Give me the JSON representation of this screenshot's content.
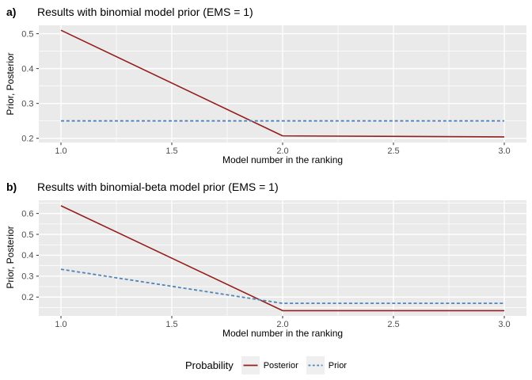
{
  "figure": {
    "legend": {
      "title": "Probability",
      "items": [
        {
          "label": "Posterior",
          "line_style": "solid"
        },
        {
          "label": "Prior",
          "line_style": "dashed"
        }
      ]
    }
  },
  "colors": {
    "posterior_line": "#941F1C",
    "prior_line": "#4F83BA",
    "panel_background": "#EAEAEA",
    "gridline": "#FFFFFF",
    "tick_label": "#4D4D4D",
    "tick_mark": "#333333",
    "text": "#000000",
    "legend_key_background": "#EFEFEF"
  },
  "chart_data": [
    {
      "type": "line",
      "tag": "a)",
      "title": "Results with binomial model prior (EMS = 1)",
      "xlabel": "Model number in the ranking",
      "ylabel": "Prior, Posterior",
      "x": [
        1,
        2,
        3
      ],
      "series": [
        {
          "name": "Posterior",
          "values": [
            0.51,
            0.207,
            0.204
          ],
          "style": "solid"
        },
        {
          "name": "Prior",
          "values": [
            0.25,
            0.25,
            0.25
          ],
          "style": "dashed"
        }
      ],
      "xlim": [
        0.9,
        3.1
      ],
      "ylim": [
        0.188,
        0.524
      ],
      "x_ticks": [
        1.0,
        1.5,
        2.0,
        2.5,
        3.0
      ],
      "x_tick_labels": [
        "1.0",
        "1.5",
        "2.0",
        "2.5",
        "3.0"
      ],
      "y_ticks": [
        0.2,
        0.3,
        0.4,
        0.5
      ],
      "y_tick_labels": [
        "0.2",
        "0.3",
        "0.4",
        "0.5"
      ],
      "x_minor_ticks": [
        1.25,
        1.75,
        2.25,
        2.75
      ],
      "y_minor_ticks": [
        0.25,
        0.35,
        0.45
      ],
      "grid": true,
      "legend_position": "bottom"
    },
    {
      "type": "line",
      "tag": "b)",
      "title": "Results with binomial-beta model prior (EMS = 1)",
      "xlabel": "Model number in the ranking",
      "ylabel": "Prior, Posterior",
      "x": [
        1,
        2,
        3
      ],
      "series": [
        {
          "name": "Posterior",
          "values": [
            0.637,
            0.135,
            0.135
          ],
          "style": "solid"
        },
        {
          "name": "Prior",
          "values": [
            0.333,
            0.17,
            0.17
          ],
          "style": "dashed"
        }
      ],
      "xlim": [
        0.9,
        3.1
      ],
      "ylim": [
        0.11,
        0.663
      ],
      "x_ticks": [
        1.0,
        1.5,
        2.0,
        2.5,
        3.0
      ],
      "x_tick_labels": [
        "1.0",
        "1.5",
        "2.0",
        "2.5",
        "3.0"
      ],
      "y_ticks": [
        0.2,
        0.3,
        0.4,
        0.5,
        0.6
      ],
      "y_tick_labels": [
        "0.2",
        "0.3",
        "0.4",
        "0.5",
        "0.6"
      ],
      "x_minor_ticks": [
        1.25,
        1.75,
        2.25,
        2.75
      ],
      "y_minor_ticks": [
        0.15,
        0.25,
        0.35,
        0.45,
        0.55,
        0.65
      ],
      "grid": true,
      "legend_position": "bottom"
    }
  ]
}
